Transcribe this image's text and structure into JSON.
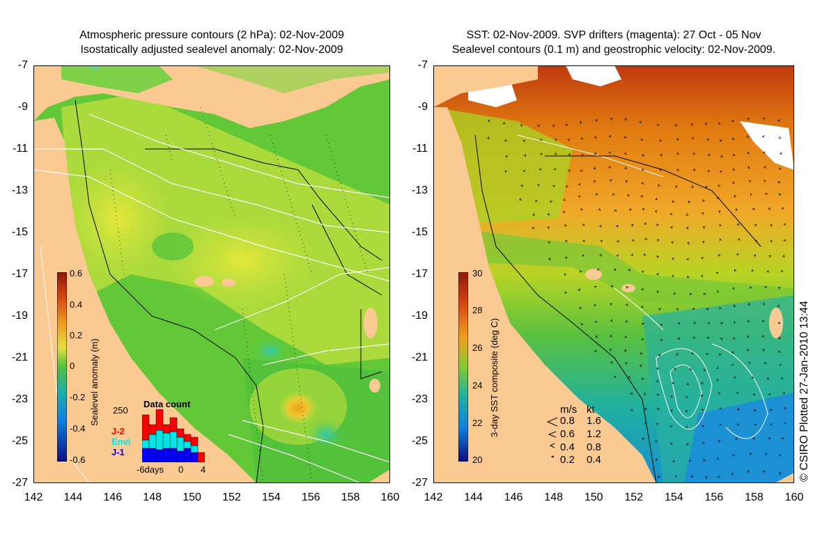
{
  "left_panel": {
    "title_line1": "Atmospheric pressure contours (2 hPa): 02-Nov-2009",
    "title_line2": "Isostatically adjusted sealevel anomaly: 02-Nov-2009",
    "colorbar": {
      "title": "Sealevel anomaly (m)",
      "ticks": [
        "0.6",
        "0.4",
        "0.2",
        "0",
        "-0.2",
        "-0.4",
        "-0.6"
      ],
      "range": [
        -0.6,
        0.6
      ]
    },
    "data_count": {
      "title": "Data count",
      "ymax_label": "250",
      "legend": [
        {
          "name": "J-2",
          "color": "#ff0000"
        },
        {
          "name": "Envi",
          "color": "#00e5e5"
        },
        {
          "name": "J-1",
          "color": "#0000ff"
        }
      ],
      "x_labels": [
        "-6days",
        "0",
        "4"
      ]
    }
  },
  "right_panel": {
    "title_line1": "SST: 02-Nov-2009. SVP drifters (magenta): 27 Oct - 05 Nov",
    "title_line2": "Sealevel contours (0.1 m) and geostrophic velocity: 02-Nov-2009.",
    "colorbar": {
      "title": "3-day SST composite (deg C)",
      "ticks": [
        "30",
        "28",
        "26",
        "24",
        "22",
        "20"
      ],
      "range": [
        20,
        30
      ]
    },
    "velocity_legend": {
      "header_ms": "m/s",
      "header_kt": "kt",
      "rows": [
        {
          "ms": "0.8",
          "kt": "1.6"
        },
        {
          "ms": "0.6",
          "kt": "1.2"
        },
        {
          "ms": "0.4",
          "kt": "0.8"
        },
        {
          "ms": "0.2",
          "kt": "0.4"
        }
      ]
    }
  },
  "axes": {
    "lat_ticks": [
      "-7",
      "-9",
      "-11",
      "-13",
      "-15",
      "-17",
      "-19",
      "-21",
      "-23",
      "-25",
      "-27"
    ],
    "lon_ticks": [
      "142",
      "144",
      "146",
      "148",
      "150",
      "152",
      "154",
      "156",
      "158",
      "160"
    ]
  },
  "credit": "© CSIRO Plotted 27-Jan-2010 13:44",
  "colors": {
    "land": "#fbc992",
    "sla_high": "#e8a01c",
    "sla_mid": "#7ad63c",
    "sla_low": "#1ab8b0",
    "sst_warm": "#e07a10",
    "sst_mid": "#a8d420",
    "sst_cool": "#18a898"
  }
}
